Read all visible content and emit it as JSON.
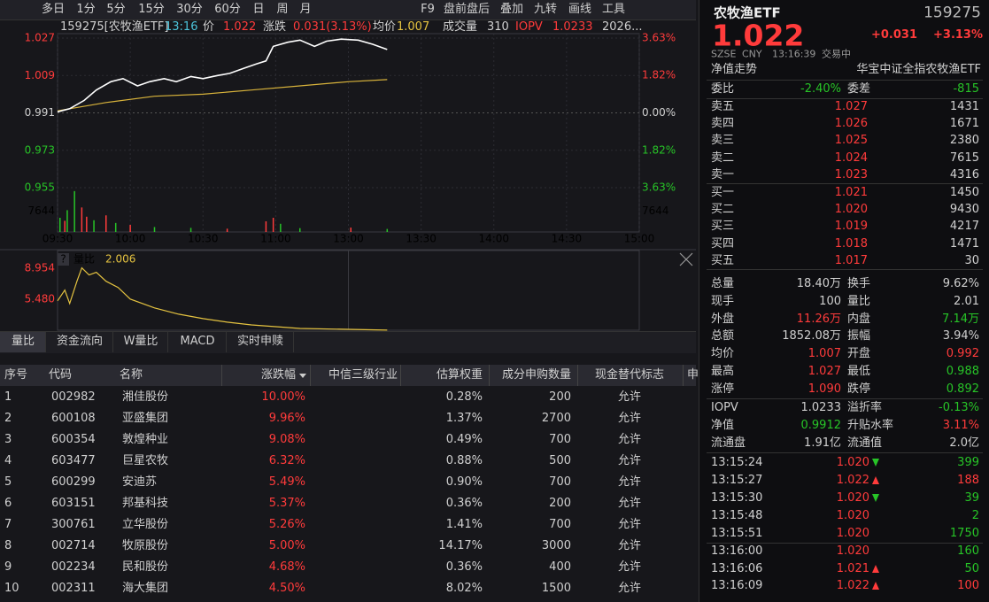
{
  "toolbar": {
    "periods": [
      "多日",
      "1分",
      "5分",
      "15分",
      "30分",
      "60分",
      "日",
      "周",
      "月"
    ],
    "tools": [
      "F9",
      "盘前盘后",
      "叠加",
      "九转",
      "画线",
      "工具"
    ]
  },
  "info_bar": [
    {
      "text": "159275[农牧渔ETF]",
      "color": "#d0d0d0"
    },
    {
      "text": "13:16",
      "color": "#4cc3d9"
    },
    {
      "text": "价",
      "color": "#d0d0d0"
    },
    {
      "text": "1.022",
      "color": "#ff3b3b"
    },
    {
      "text": "涨跌",
      "color": "#d0d0d0"
    },
    {
      "text": "0.031(3.13%)",
      "color": "#ff3b3b"
    },
    {
      "text": "均价",
      "color": "#d0d0d0"
    },
    {
      "text": "1.007",
      "color": "#e5c340"
    },
    {
      "text": "成交量",
      "color": "#d0d0d0"
    },
    {
      "text": "310",
      "color": "#d0d0d0"
    },
    {
      "text": "IOPV",
      "color": "#ff3b3b"
    },
    {
      "text": "1.0233",
      "color": "#ff3b3b"
    },
    {
      "text": "2026...",
      "color": "#d0d0d0"
    }
  ],
  "price_chart": {
    "type": "line",
    "ylim": [
      0.955,
      1.027
    ],
    "yticks": [
      1.027,
      1.009,
      0.991,
      0.973,
      0.955
    ],
    "y2lim": [
      -3.63,
      3.63
    ],
    "y2ticks": [
      {
        "value": 3.63,
        "label": "3.63%"
      },
      {
        "value": 1.82,
        "label": "1.82%"
      },
      {
        "value": 0,
        "label": "0.00%"
      },
      {
        "value": -1.82,
        "label": "1.82%"
      },
      {
        "value": -3.63,
        "label": "3.63%"
      }
    ],
    "xlim": [
      0,
      240
    ],
    "xticks": [
      {
        "value": 0,
        "label": "09:30"
      },
      {
        "value": 30,
        "label": "10:00"
      },
      {
        "value": 60,
        "label": "10:30"
      },
      {
        "value": 90,
        "label": "11:00"
      },
      {
        "value": 120,
        "label": "13:00"
      },
      {
        "value": 150,
        "label": "13:30"
      },
      {
        "value": 180,
        "label": "14:00"
      },
      {
        "value": 210,
        "label": "14:30"
      },
      {
        "value": 240,
        "label": "15:00"
      }
    ],
    "grid": true,
    "price": {
      "color": "#ffffff",
      "x": [
        0,
        5,
        11,
        16,
        22,
        27,
        33,
        38,
        44,
        49,
        55,
        60,
        66,
        71,
        77,
        82,
        86,
        89,
        95,
        100,
        106,
        111,
        117,
        124,
        130,
        136
      ],
      "values": [
        0.9915,
        0.993,
        0.997,
        1.002,
        1.006,
        1.0075,
        1.004,
        1.006,
        1.0075,
        1.006,
        1.0085,
        1.0075,
        1.009,
        1.01,
        1.0125,
        1.0145,
        1.016,
        1.023,
        1.025,
        1.026,
        1.023,
        1.0255,
        1.0265,
        1.026,
        1.024,
        1.0215
      ]
    },
    "average": {
      "color": "#d8b33b",
      "x": [
        0,
        20,
        40,
        60,
        80,
        100,
        120,
        136
      ],
      "values": [
        0.992,
        0.996,
        0.999,
        1.0,
        1.002,
        1.004,
        1.006,
        1.007
      ]
    },
    "volume": {
      "ylim": [
        0,
        15288
      ],
      "yticks": [
        7644
      ],
      "x": [
        1,
        3,
        4,
        7,
        10,
        12,
        15,
        20,
        24,
        30,
        40,
        55,
        70,
        86,
        89,
        92,
        100,
        121,
        136
      ],
      "values": [
        5200,
        4100,
        8000,
        15000,
        9000,
        5600,
        4300,
        6100,
        3300,
        2600,
        1800,
        1500,
        1200,
        3900,
        5200,
        3000,
        1400,
        1600,
        1100
      ],
      "colors": [
        "#27c427",
        "#ff3b3b",
        "#27c427",
        "#27c427",
        "#ff3b3b",
        "#ff3b3b",
        "#27c427",
        "#ff3b3b",
        "#27c427",
        "#ff3b3b",
        "#27c427",
        "#27c427",
        "#ff3b3b",
        "#ff3b3b",
        "#ff3b3b",
        "#27c427",
        "#27c427",
        "#ff3b3b",
        "#27c427"
      ]
    }
  },
  "indicator": {
    "type": "line",
    "help": "?",
    "name": "量比",
    "current": "2.006",
    "color": "#e5c340",
    "ylim": [
      2.0,
      9.95
    ],
    "yticks": [
      8.954,
      {
        "value": 5.48,
        "label": "5.480"
      }
    ],
    "xlim": [
      0,
      240
    ],
    "x": [
      0,
      3,
      5,
      8,
      10,
      13,
      16,
      20,
      25,
      30,
      40,
      50,
      60,
      70,
      80,
      90,
      100,
      120,
      136
    ],
    "values": [
      5.3,
      6.5,
      5.0,
      7.5,
      9.0,
      8.2,
      8.5,
      7.5,
      6.8,
      5.5,
      4.5,
      3.8,
      3.3,
      2.9,
      2.6,
      2.4,
      2.2,
      2.1,
      2.006
    ]
  },
  "tabs": [
    "量比",
    "资金流向",
    "W量比",
    "MACD",
    "实时申赎"
  ],
  "table": {
    "headers": [
      "序号",
      "代码",
      "名称",
      "涨跌幅",
      "中信三级行业",
      "估算权重",
      "成分申购数量",
      "现金替代标志",
      "申"
    ],
    "rows": [
      [
        "1",
        "002982",
        "湘佳股份",
        "10.00%",
        "0.28%",
        "200",
        "允许"
      ],
      [
        "2",
        "600108",
        "亚盛集团",
        "9.96%",
        "1.37%",
        "2700",
        "允许"
      ],
      [
        "3",
        "600354",
        "敦煌种业",
        "9.08%",
        "0.49%",
        "700",
        "允许"
      ],
      [
        "4",
        "603477",
        "巨星农牧",
        "6.32%",
        "0.88%",
        "500",
        "允许"
      ],
      [
        "5",
        "600299",
        "安迪苏",
        "5.49%",
        "0.90%",
        "700",
        "允许"
      ],
      [
        "6",
        "603151",
        "邦基科技",
        "5.37%",
        "0.36%",
        "200",
        "允许"
      ],
      [
        "7",
        "300761",
        "立华股份",
        "5.26%",
        "1.41%",
        "700",
        "允许"
      ],
      [
        "8",
        "002714",
        "牧原股份",
        "5.00%",
        "14.17%",
        "3000",
        "允许"
      ],
      [
        "9",
        "002234",
        "民和股份",
        "4.68%",
        "0.36%",
        "400",
        "允许"
      ],
      [
        "10",
        "002311",
        "海大集团",
        "4.50%",
        "8.02%",
        "1500",
        "允许"
      ]
    ]
  },
  "quote": {
    "name": "农牧渔ETF",
    "code": "159275",
    "price": "1.022",
    "change": "+0.031",
    "change_pct": "+3.13%",
    "exchange": "SZSE",
    "currency": "CNY",
    "time": "13:16:39",
    "status": "交易中"
  },
  "nav_trend": {
    "label": "净值走势",
    "fund": "华宝中证全指农牧渔ETF"
  },
  "order_ratio": [
    "委比",
    "-2.40%",
    "委差",
    "-815"
  ],
  "asks": [
    [
      "卖五",
      "1.027",
      "1431"
    ],
    [
      "卖四",
      "1.026",
      "1671"
    ],
    [
      "卖三",
      "1.025",
      "2380"
    ],
    [
      "卖二",
      "1.024",
      "7615"
    ],
    [
      "卖一",
      "1.023",
      "4316"
    ]
  ],
  "bids": [
    [
      "买一",
      "1.021",
      "1450"
    ],
    [
      "买二",
      "1.020",
      "9430"
    ],
    [
      "买三",
      "1.019",
      "4217"
    ],
    [
      "买四",
      "1.018",
      "1471"
    ],
    [
      "买五",
      "1.017",
      "30"
    ]
  ],
  "stats": [
    [
      "总量",
      "18.40万",
      "换手",
      "9.62%"
    ],
    [
      "现手",
      "100",
      "量比",
      "2.01"
    ],
    [
      "外盘",
      "11.26万",
      "内盘",
      "7.14万"
    ],
    [
      "总额",
      "1852.08万",
      "振幅",
      "3.94%"
    ],
    [
      "均价",
      "1.007",
      "开盘",
      "0.992"
    ],
    [
      "最高",
      "1.027",
      "最低",
      "0.988"
    ],
    [
      "涨停",
      "1.090",
      "跌停",
      "0.892"
    ]
  ],
  "stat_colors": [
    [
      "#d0d0d0",
      "#d0d0d0"
    ],
    [
      "#d0d0d0",
      "#d0d0d0"
    ],
    [
      "#ff3b3b",
      "#27c427"
    ],
    [
      "#d0d0d0",
      "#d0d0d0"
    ],
    [
      "#ff3b3b",
      "#ff3b3b"
    ],
    [
      "#ff3b3b",
      "#27c427"
    ],
    [
      "#ff3b3b",
      "#27c427"
    ]
  ],
  "nav_stats": [
    [
      "IOPV",
      "1.0233",
      "溢折率",
      "-0.13%"
    ],
    [
      "净值",
      "0.9912",
      "升贴水率",
      "3.11%"
    ],
    [
      "流通盘",
      "1.91亿",
      "流通值",
      "2.0亿"
    ]
  ],
  "nav_colors": [
    [
      "#d0d0d0",
      "#27c427"
    ],
    [
      "#27c427",
      "#ff3b3b"
    ],
    [
      "#d0d0d0",
      "#d0d0d0"
    ]
  ],
  "trades": [
    {
      "time": "13:15:24",
      "price": "1.020",
      "arrow": "down",
      "volume": "399",
      "color": "#27c427"
    },
    {
      "time": "13:15:27",
      "price": "1.022",
      "arrow": "up",
      "volume": "188",
      "color": "#ff3b3b"
    },
    {
      "time": "13:15:30",
      "price": "1.020",
      "arrow": "down",
      "volume": "39",
      "color": "#27c427"
    },
    {
      "time": "13:15:48",
      "price": "1.020",
      "volume": "2",
      "color": "#27c427"
    },
    {
      "time": "13:15:51",
      "price": "1.020",
      "volume": "1750",
      "color": "#27c427"
    },
    {
      "time": "13:16:00",
      "price": "1.020",
      "volume": "160",
      "color": "#27c427"
    },
    {
      "time": "13:16:06",
      "price": "1.021",
      "arrow": "up",
      "volume": "50",
      "color": "#27c427"
    },
    {
      "time": "13:16:09",
      "price": "1.022",
      "arrow": "up",
      "volume": "100",
      "color": "#ff3b3b"
    }
  ]
}
